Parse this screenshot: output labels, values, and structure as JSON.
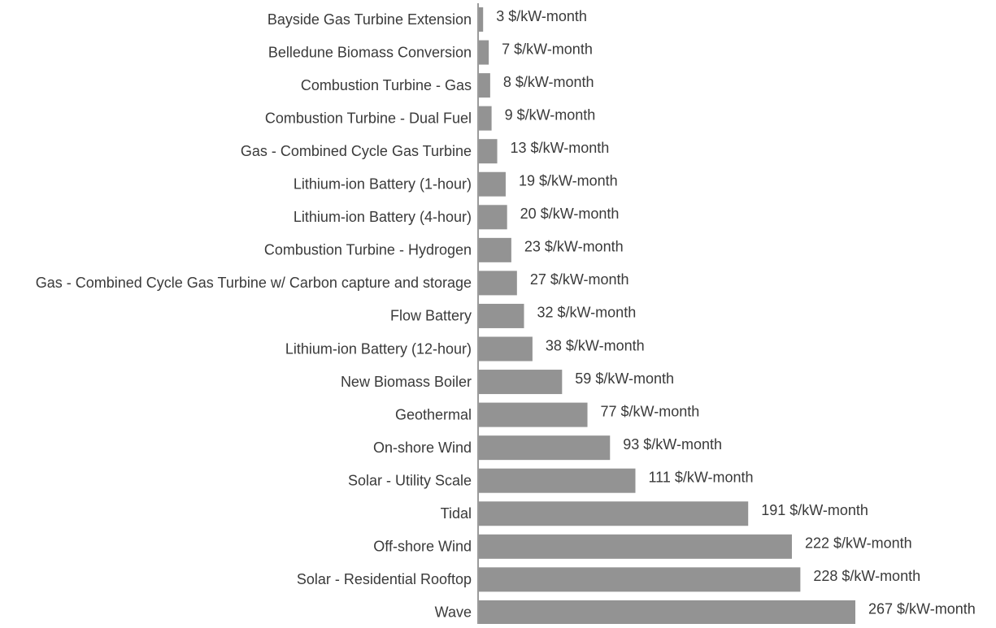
{
  "chart_data": {
    "type": "bar",
    "orientation": "horizontal",
    "color": "#939393",
    "categories": [
      "Bayside Gas Turbine Extension",
      "Belledune Biomass Conversion",
      "Combustion Turbine - Gas",
      "Combustion Turbine - Dual Fuel",
      "Gas - Combined Cycle Gas Turbine",
      "Lithium-ion Battery (1-hour)",
      "Lithium-ion Battery (4-hour)",
      "Combustion Turbine - Hydrogen",
      "Gas - Combined Cycle Gas Turbine w/ Carbon capture and storage",
      "Flow Battery",
      "Lithium-ion Battery (12-hour)",
      "New Biomass Boiler",
      "Geothermal",
      "On-shore Wind",
      "Solar - Utility Scale",
      "Tidal",
      "Off-shore Wind",
      "Solar - Residential Rooftop",
      "Wave"
    ],
    "values": [
      3,
      7,
      8,
      9,
      13,
      19,
      20,
      23,
      27,
      32,
      38,
      59,
      77,
      93,
      111,
      191,
      222,
      228,
      267
    ],
    "value_labels": [
      "3 $/kW-month",
      "7 $/kW-month",
      "8 $/kW-month",
      "9 $/kW-month",
      "13 $/kW-month",
      "19 $/kW-month",
      "20 $/kW-month",
      "23 $/kW-month",
      "27 $/kW-month",
      "32 $/kW-month",
      "38 $/kW-month",
      "59 $/kW-month",
      "77 $/kW-month",
      "93 $/kW-month",
      "111 $/kW-month",
      "191 $/kW-month",
      "222 $/kW-month",
      "228 $/kW-month",
      "267 $/kW-month"
    ]
  }
}
